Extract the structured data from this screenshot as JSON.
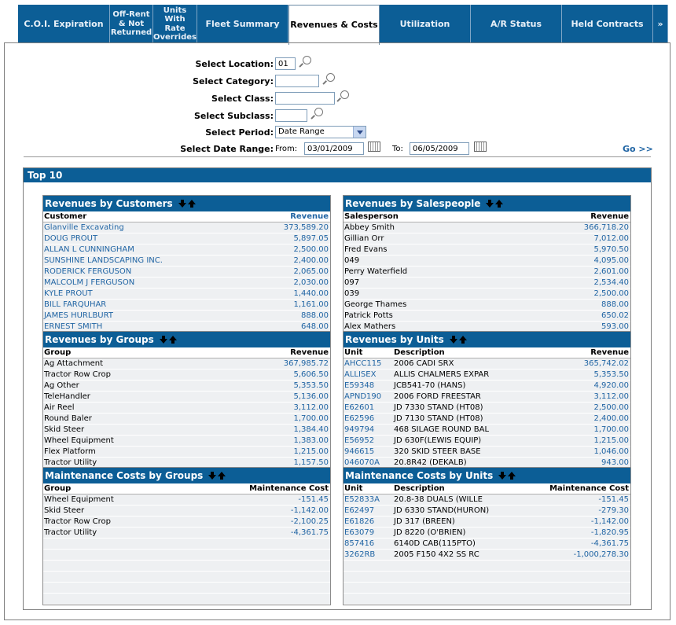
{
  "tabs": [
    {
      "label": "C.O.I. Expiration"
    },
    {
      "label": "Off-Rent & Not Returned"
    },
    {
      "label": "Units With Rate Overrides"
    },
    {
      "label": "Fleet Summary"
    },
    {
      "label": "Revenues & Costs"
    },
    {
      "label": "Utilization"
    },
    {
      "label": "A/R Status"
    },
    {
      "label": "Held Contracts"
    },
    {
      "label": "»"
    }
  ],
  "form": {
    "location_label": "Select Location:",
    "location_value": "01",
    "category_label": "Select Category:",
    "category_value": "",
    "class_label": "Select Class:",
    "class_value": "",
    "subclass_label": "Select Subclass:",
    "subclass_value": "",
    "period_label": "Select Period:",
    "period_value": "Date Range",
    "daterange_label": "Select Date Range:",
    "from_label": "From:",
    "from_value": "03/01/2009",
    "to_label": "To:",
    "to_value": "06/05/2009",
    "go_label": "Go >>"
  },
  "top10_title": "Top 10",
  "rev_customers": {
    "title": "Revenues by Customers",
    "col1": "Customer",
    "col3": "Revenue",
    "rows": [
      {
        "a": "Glanville Excavating",
        "v": "373,589.20"
      },
      {
        "a": "DOUG PROUT",
        "v": "5,897.05"
      },
      {
        "a": "ALLAN L CUNNINGHAM",
        "v": "2,500.00"
      },
      {
        "a": "SUNSHINE LANDSCAPING INC.",
        "v": "2,400.00"
      },
      {
        "a": "RODERICK FERGUSON",
        "v": "2,065.00"
      },
      {
        "a": "MALCOLM J FERGUSON",
        "v": "2,030.00"
      },
      {
        "a": "KYLE PROUT",
        "v": "1,440.00"
      },
      {
        "a": "BILL FARQUHAR",
        "v": "1,161.00"
      },
      {
        "a": "JAMES HURLBURT",
        "v": "888.00"
      },
      {
        "a": "ERNEST SMITH",
        "v": "648.00"
      }
    ]
  },
  "rev_salespeople": {
    "title": "Revenues by Salespeople",
    "col1": "Salesperson",
    "col3": "Revenue",
    "rows": [
      {
        "a": "Abbey Smith",
        "v": "366,718.20"
      },
      {
        "a": "Gillian Orr",
        "v": "7,012.00"
      },
      {
        "a": "Fred Evans",
        "v": "5,970.50"
      },
      {
        "a": "049",
        "v": "4,095.00"
      },
      {
        "a": "Perry Waterfield",
        "v": "2,601.00"
      },
      {
        "a": "097",
        "v": "2,534.40"
      },
      {
        "a": "039",
        "v": "2,500.00"
      },
      {
        "a": "George Thames",
        "v": "888.00"
      },
      {
        "a": "Patrick Potts",
        "v": "650.02"
      },
      {
        "a": "Alex Mathers",
        "v": "593.00"
      }
    ]
  },
  "rev_groups": {
    "title": "Revenues by Groups",
    "col1": "Group",
    "col3": "Revenue",
    "rows": [
      {
        "a": "Ag Attachment",
        "v": "367,985.72"
      },
      {
        "a": "Tractor Row Crop",
        "v": "5,606.50"
      },
      {
        "a": "Ag Other",
        "v": "5,353.50"
      },
      {
        "a": "TeleHandler",
        "v": "5,136.00"
      },
      {
        "a": "Air Reel",
        "v": "3,112.00"
      },
      {
        "a": "Round Baler",
        "v": "1,700.00"
      },
      {
        "a": "Skid Steer",
        "v": "1,384.40"
      },
      {
        "a": "Wheel Equipment",
        "v": "1,383.00"
      },
      {
        "a": "Flex Platform",
        "v": "1,215.00"
      },
      {
        "a": "Tractor Utility",
        "v": "1,157.50"
      }
    ]
  },
  "rev_units": {
    "title": "Revenues by Units",
    "col1": "Unit",
    "col2": "Description",
    "col3": "Revenue",
    "rows": [
      {
        "a": "AHCC115",
        "d": "2006 CADI SRX",
        "v": "365,742.02"
      },
      {
        "a": "ALLISEX",
        "d": "ALLIS CHALMERS EXPAR",
        "v": "5,353.50"
      },
      {
        "a": "E59348",
        "d": "JCB541-70 (HANS)",
        "v": "4,920.00"
      },
      {
        "a": "APND190",
        "d": "2006 FORD FREESTAR",
        "v": "3,112.00"
      },
      {
        "a": "E62601",
        "d": "JD 7330 STAND (HT08)",
        "v": "2,500.00"
      },
      {
        "a": "E62596",
        "d": "JD 7130 STAND (HT08)",
        "v": "2,400.00"
      },
      {
        "a": "949794",
        "d": "468 SILAGE ROUND BAL",
        "v": "1,700.00"
      },
      {
        "a": "E56952",
        "d": "JD 630F(LEWIS EQUIP)",
        "v": "1,215.00"
      },
      {
        "a": "946615",
        "d": "320 SKID STEER BASE",
        "v": "1,046.00"
      },
      {
        "a": "046070A",
        "d": "20.8R42 (DEKALB)",
        "v": "943.00"
      }
    ]
  },
  "maint_groups": {
    "title": "Maintenance Costs by Groups",
    "col1": "Group",
    "col3": "Maintenance Cost",
    "rows": [
      {
        "a": "Wheel Equipment",
        "v": "-151.45"
      },
      {
        "a": "Skid Steer",
        "v": "-1,142.00"
      },
      {
        "a": "Tractor Row Crop",
        "v": "-2,100.25"
      },
      {
        "a": "Tractor Utility",
        "v": "-4,361.75"
      }
    ]
  },
  "maint_units": {
    "title": "Maintenance Costs by Units",
    "col1": "Unit",
    "col2": "Description",
    "col3": "Maintenance Cost",
    "rows": [
      {
        "a": "E52833A",
        "d": "20.8-38 DUALS (WILLE",
        "v": "-151.45"
      },
      {
        "a": "E62497",
        "d": "JD 6330 STAND(HURON)",
        "v": "-279.30"
      },
      {
        "a": "E61826",
        "d": "JD 317 (BREEN)",
        "v": "-1,142.00"
      },
      {
        "a": "E63079",
        "d": "JD 8220 (O'BRIEN)",
        "v": "-1,820.95"
      },
      {
        "a": "857416",
        "d": "6140D CAB(115PTO)",
        "v": "-4,361.75"
      },
      {
        "a": "3262RB",
        "d": "2005 F150 4X2 SS RC",
        "v": "-1,000,278.30"
      }
    ]
  }
}
